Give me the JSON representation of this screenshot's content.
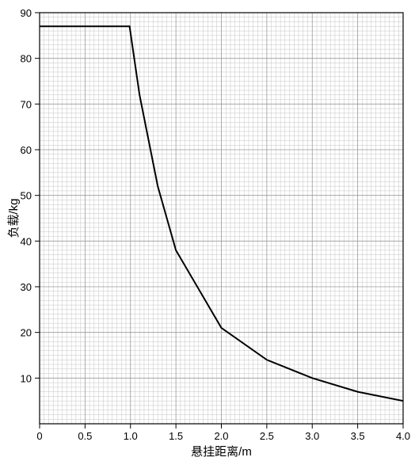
{
  "chart_data": {
    "type": "line",
    "title": "",
    "xlabel": "悬挂距离/m",
    "ylabel": "负载/kg",
    "xlim": [
      0,
      4.0
    ],
    "ylim": [
      0,
      90
    ],
    "grid": true,
    "x_ticks": [
      "0",
      "0.5",
      "1.0",
      "1.5",
      "2.0",
      "2.5",
      "3.0",
      "3.5",
      "4.0"
    ],
    "y_ticks": [
      "10",
      "20",
      "30",
      "40",
      "50",
      "60",
      "70",
      "80",
      "90"
    ],
    "series": [
      {
        "x": [
          0,
          0.5,
          0.99,
          1.1,
          1.2,
          1.3,
          1.5,
          2.0,
          2.5,
          3.0,
          3.5,
          4.0
        ],
        "y": [
          87,
          87,
          87,
          72,
          62,
          52,
          38,
          21,
          14,
          10,
          7,
          5
        ]
      }
    ]
  }
}
